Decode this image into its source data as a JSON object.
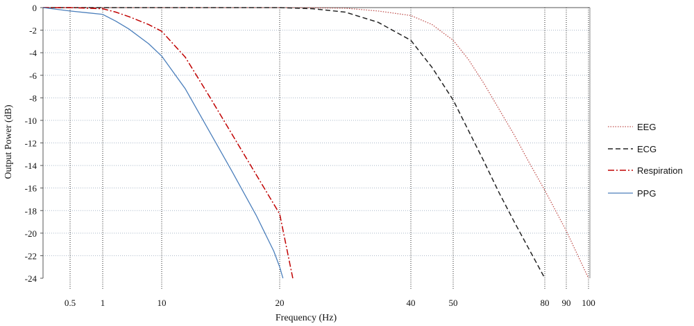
{
  "chart_data": {
    "type": "line",
    "xlabel": "Frequency (Hz)",
    "ylabel": "Output Power (dB)",
    "ylim": [
      -24,
      0
    ],
    "yticks": [
      0,
      -2,
      -4,
      -6,
      -8,
      -10,
      -12,
      -14,
      -16,
      -18,
      -20,
      -22,
      -24
    ],
    "x_ticks": [
      0.5,
      1,
      10,
      20,
      40,
      50,
      80,
      90,
      100
    ],
    "x_scale": "nonlinear (ticks at 0.5, 1, 10, 20, 40, 50, 80, 90, 100)",
    "grid": "dotted horizontal gridlines; dotted vertical lines at x ticks",
    "legend_position": "right",
    "series": [
      {
        "name": "EEG",
        "color": "#c0504d",
        "style": "dotted",
        "x": [
          0,
          0.5,
          1,
          10,
          20,
          25,
          30,
          35,
          40,
          45,
          50,
          55,
          60,
          65,
          70,
          75,
          80,
          85,
          90,
          95,
          100
        ],
        "y": [
          0,
          0,
          0,
          0,
          0,
          -0.02,
          -0.05,
          -0.3,
          -0.7,
          -1.5,
          -2.9,
          -4.6,
          -6.7,
          -9.0,
          -11.3,
          -13.8,
          -16.2,
          -18.0,
          -19.8,
          -21.9,
          -24.0
        ]
      },
      {
        "name": "ECG",
        "color": "#222222",
        "style": "dashed",
        "x": [
          0,
          0.5,
          1,
          10,
          20,
          25,
          30,
          35,
          40,
          45,
          50,
          55,
          60,
          65,
          70,
          75,
          80
        ],
        "y": [
          0,
          0,
          0,
          0,
          0,
          -0.1,
          -0.4,
          -1.3,
          -2.9,
          -5.3,
          -8.2,
          -10.9,
          -13.6,
          -16.4,
          -19.0,
          -21.5,
          -24.0
        ]
      },
      {
        "name": "Respiration",
        "color": "#c00000",
        "style": "dash-dot",
        "x": [
          0,
          0.5,
          1,
          3,
          5,
          8,
          10,
          12,
          14,
          16,
          18,
          20,
          22
        ],
        "y": [
          0,
          0,
          -0.1,
          -0.4,
          -0.8,
          -1.5,
          -2.1,
          -4.4,
          -7.8,
          -11.3,
          -14.8,
          -18.3,
          -24.0
        ]
      },
      {
        "name": "PPG",
        "color": "#4a7ebb",
        "style": "solid",
        "x": [
          0,
          0.5,
          1,
          3,
          5,
          8,
          10,
          12,
          14,
          16,
          18,
          19.5,
          20,
          20.5
        ],
        "y": [
          0,
          -0.3,
          -0.6,
          -1.2,
          -1.9,
          -3.2,
          -4.3,
          -7.2,
          -10.9,
          -14.6,
          -18.4,
          -21.6,
          -23.0,
          -24.0
        ]
      }
    ]
  }
}
